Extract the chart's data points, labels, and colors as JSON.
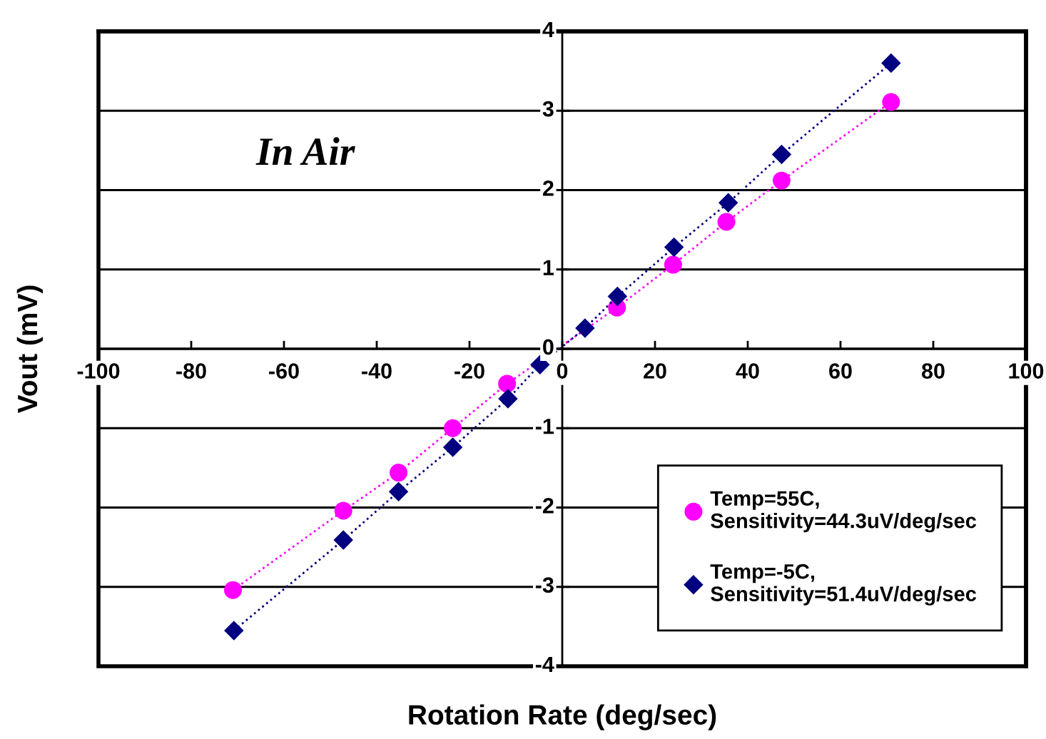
{
  "chart_data": {
    "type": "line",
    "xlabel": "Rotation Rate (deg/sec)",
    "ylabel": "Vout (mV)",
    "annotations": [
      "In Air"
    ],
    "xlim": [
      -100,
      100
    ],
    "xticks": [
      -100,
      -80,
      -60,
      -40,
      -20,
      0,
      20,
      40,
      60,
      80,
      100
    ],
    "ylim": [
      -4,
      4
    ],
    "yticks": [
      -4,
      -3,
      -2,
      -1,
      0,
      1,
      2,
      3,
      4
    ],
    "grid": "y",
    "legend": "bottom right",
    "line_style": "dotted",
    "series": [
      {
        "name": "Temp=55C,\nSensitivity=44.3uV/deg/sec",
        "color": "#ff00ff",
        "marker": "circle",
        "x": [
          -71.0,
          -47.2,
          -35.3,
          -23.6,
          -11.9,
          11.8,
          23.9,
          35.4,
          47.3,
          70.9
        ],
        "values": [
          -3.04,
          -2.04,
          -1.56,
          -1.0,
          -0.44,
          0.52,
          1.06,
          1.6,
          2.12,
          3.11
        ]
      },
      {
        "name": "Temp=-5C,\nSensitivity=51.4uV/deg/sec",
        "color": "#000080",
        "marker": "diamond",
        "x": [
          -70.8,
          -47.2,
          -35.3,
          -23.6,
          -11.7,
          -4.8,
          4.9,
          11.9,
          24.1,
          35.8,
          47.3,
          70.9
        ],
        "values": [
          -3.55,
          -2.41,
          -1.8,
          -1.24,
          -0.63,
          -0.2,
          0.26,
          0.66,
          1.28,
          1.84,
          2.45,
          3.6
        ]
      }
    ]
  }
}
